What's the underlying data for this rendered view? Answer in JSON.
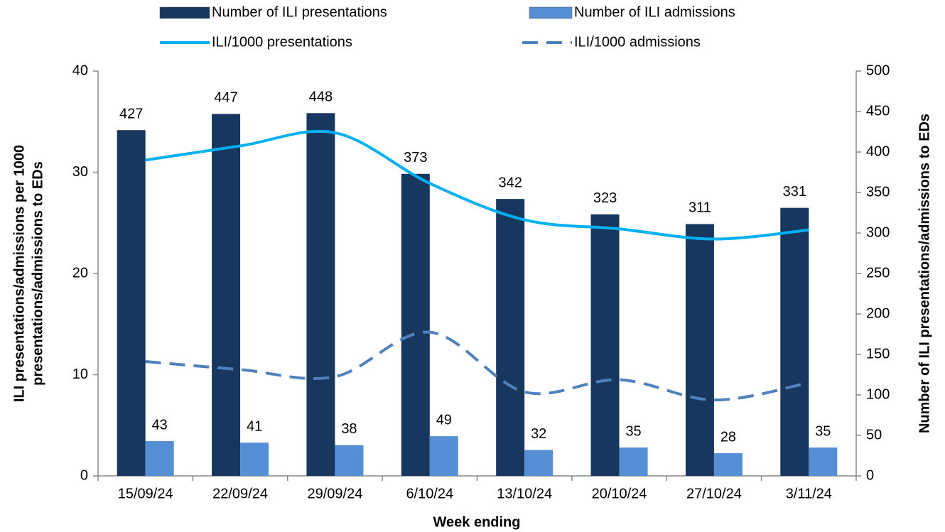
{
  "chart_data": {
    "type": "combo",
    "x_label": "Week ending",
    "y_label": [
      "ILI presentations/admissions per 1000",
      "presentations/admissions to EDs"
    ],
    "y2_label": "Number of ILI presentations/admissions to EDs",
    "categories": [
      "15/09/24",
      "22/09/24",
      "29/09/24",
      "6/10/24",
      "13/10/24",
      "20/10/24",
      "27/10/24",
      "3/11/24"
    ],
    "ylim": [
      0,
      40
    ],
    "yticks": [
      0,
      10,
      20,
      30,
      40
    ],
    "y2lim": [
      0,
      500
    ],
    "y2ticks": [
      0,
      50,
      100,
      150,
      200,
      250,
      300,
      350,
      400,
      450,
      500
    ],
    "series": [
      {
        "name": "Number of ILI presentations",
        "type": "bar",
        "axis": "y2",
        "color": "#17375e",
        "values": [
          427,
          447,
          448,
          373,
          342,
          323,
          311,
          331
        ]
      },
      {
        "name": "Number of ILI admissions",
        "type": "bar",
        "axis": "y2",
        "color": "#558ed5",
        "values": [
          43,
          41,
          38,
          49,
          32,
          35,
          28,
          35
        ]
      },
      {
        "name": "ILI/1000 presentations",
        "type": "line",
        "color": "#00b0f0",
        "dashed": false,
        "values": [
          31.2,
          32.6,
          33.9,
          28.9,
          25.3,
          24.4,
          23.4,
          24.3
        ]
      },
      {
        "name": "ILI/1000 admissions",
        "type": "line",
        "color": "#4f81bd",
        "dashed": true,
        "values": [
          11.3,
          10.5,
          9.8,
          14.2,
          8.3,
          9.5,
          7.5,
          9.2
        ]
      }
    ]
  }
}
